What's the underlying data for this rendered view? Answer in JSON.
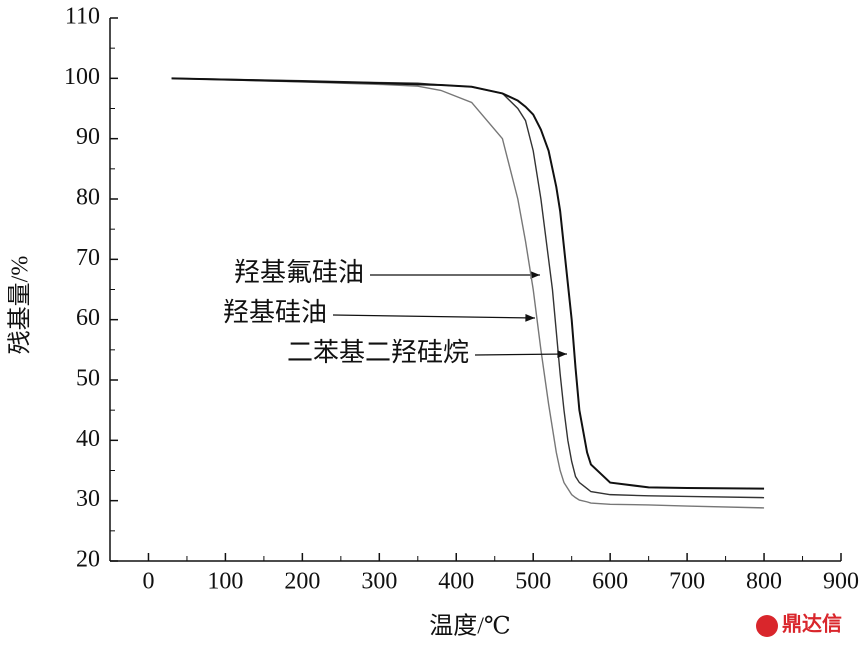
{
  "chart_data": {
    "type": "line",
    "xlabel": "温度/℃",
    "ylabel": "残基量/%",
    "x": [
      30,
      200,
      300,
      350,
      380,
      420,
      460,
      480,
      490,
      500,
      510,
      520,
      525,
      530,
      535,
      540,
      545,
      550,
      555,
      560,
      570,
      575,
      600,
      650,
      700,
      800
    ],
    "series": [
      {
        "name": "羟基氟硅油",
        "color": "#333333",
        "values": [
          100,
          99.6,
          99.3,
          99.2,
          98.9,
          98.6,
          97.5,
          95,
          93,
          88,
          80,
          70,
          65,
          58,
          51,
          45,
          40,
          36.5,
          34,
          33,
          32,
          31.5,
          31,
          30.8,
          30.7,
          30.5
        ]
      },
      {
        "name": "羟基硅油",
        "color": "#777777",
        "values": [
          100,
          99.4,
          99,
          98.7,
          98,
          96,
          90,
          80,
          73,
          65,
          55,
          46,
          42,
          38,
          35,
          33,
          32,
          31,
          30.5,
          30.1,
          29.8,
          29.6,
          29.4,
          29.3,
          29.1,
          28.8
        ]
      },
      {
        "name": "二苯基二羟硅烷",
        "color": "#111111",
        "values": [
          100,
          99.5,
          99.2,
          99,
          98.9,
          98.6,
          97.5,
          96.3,
          95.3,
          94,
          91.5,
          88,
          85,
          82,
          78,
          72,
          66,
          60,
          52,
          45,
          38,
          36,
          33,
          32.2,
          32.1,
          32
        ]
      }
    ],
    "xlim": [
      -50,
      900
    ],
    "xticks": [
      0,
      100,
      200,
      300,
      400,
      500,
      600,
      700,
      800,
      900
    ],
    "ylim": [
      20,
      110
    ],
    "yticks": [
      20,
      30,
      40,
      50,
      60,
      70,
      80,
      90,
      100,
      110
    ],
    "watermark": "鼎达信"
  }
}
